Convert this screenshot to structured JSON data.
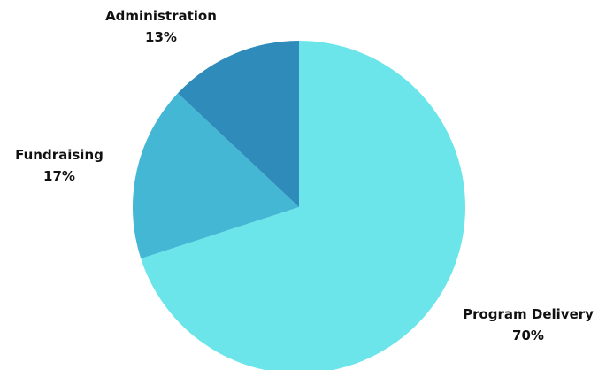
{
  "chart_data": {
    "type": "pie",
    "slices": [
      {
        "label": "Program Delivery",
        "value": 70,
        "value_label": "70%",
        "color": "#6be5ea"
      },
      {
        "label": "Fundraising",
        "value": 17,
        "value_label": "17%",
        "color": "#43b7d4"
      },
      {
        "label": "Administration",
        "value": 13,
        "value_label": "13%",
        "color": "#2f8cba"
      }
    ],
    "start_angle_deg": 0,
    "direction": "clockwise"
  }
}
